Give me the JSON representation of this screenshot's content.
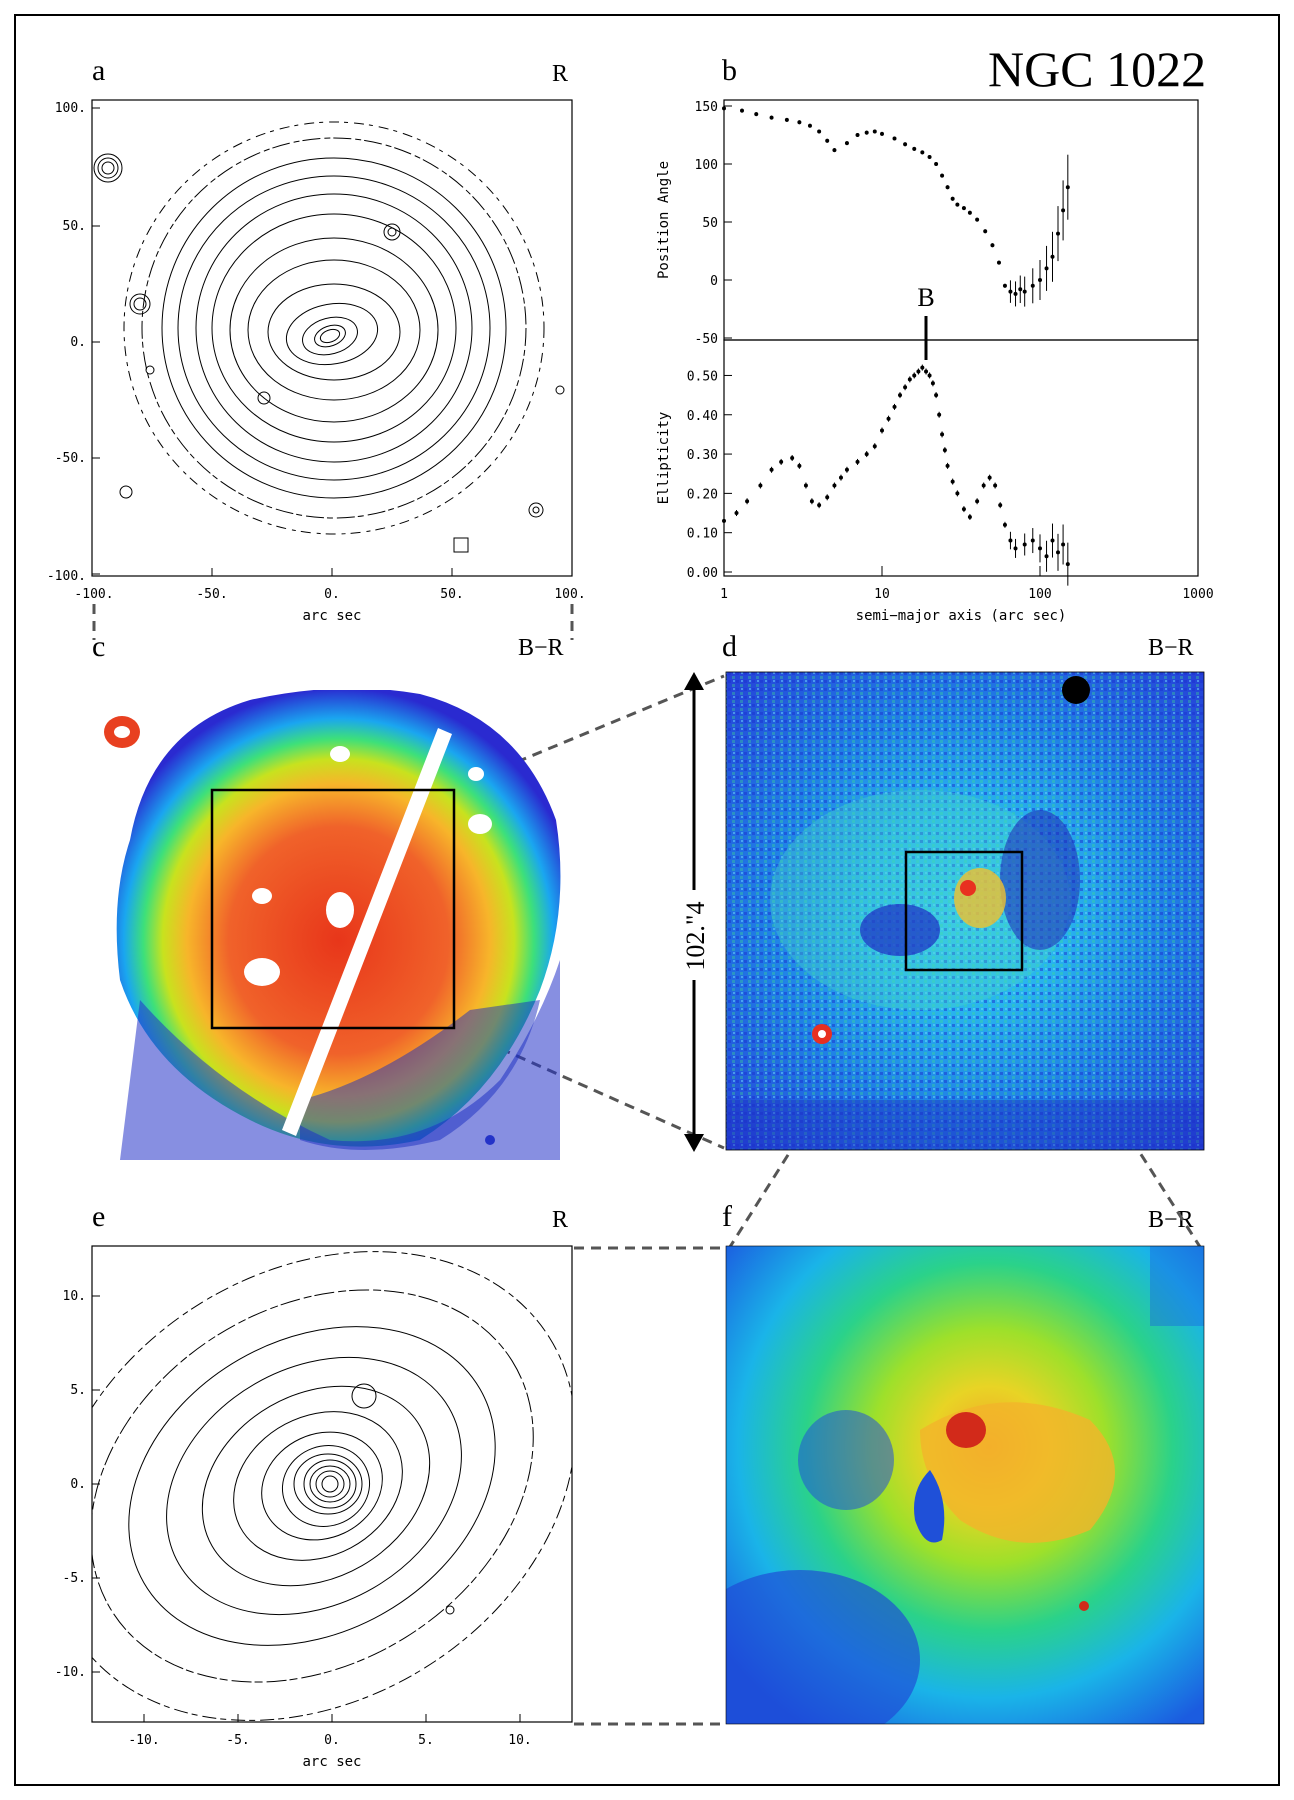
{
  "figure": {
    "title": "NGC 1022",
    "scale_label": "102.\"4"
  },
  "panels": {
    "a": {
      "letter": "a",
      "band": "R",
      "x_ticks": [
        "-100.",
        "-50.",
        "0.",
        "50.",
        "100."
      ],
      "y_ticks": [
        "100.",
        "50.",
        "0.",
        "-50.",
        "-100."
      ],
      "xlabel": "arc sec"
    },
    "b": {
      "letter": "b"
    },
    "c": {
      "letter": "c",
      "band": "B−R"
    },
    "d": {
      "letter": "d",
      "band": "B−R"
    },
    "e": {
      "letter": "e",
      "band": "R",
      "x_ticks": [
        "-10.",
        "-5.",
        "0.",
        "5.",
        "10."
      ],
      "y_ticks": [
        "10.",
        "5.",
        "0.",
        "-5.",
        "-10."
      ],
      "xlabel": "arc sec"
    },
    "f": {
      "letter": "f",
      "band": "B−R"
    }
  },
  "chart_data": [
    {
      "type": "scatter",
      "panel": "b-top",
      "title": "",
      "ylabel": "Position Angle",
      "xlabel": "",
      "xscale": "log",
      "xlim": [
        1,
        1000
      ],
      "ylim": [
        -50,
        150
      ],
      "y_ticks": [
        "150",
        "100",
        "50",
        "0",
        "-50"
      ],
      "x": [
        1,
        1.3,
        1.6,
        2,
        2.5,
        3,
        3.5,
        4,
        4.5,
        5,
        6,
        7,
        8,
        9,
        10,
        12,
        14,
        16,
        18,
        20,
        22,
        24,
        26,
        28,
        30,
        33,
        36,
        40,
        45,
        50,
        55,
        60,
        65,
        70,
        75,
        80,
        90,
        100,
        110,
        120,
        130,
        140,
        150
      ],
      "y": [
        148,
        146,
        143,
        140,
        138,
        136,
        133,
        128,
        120,
        112,
        118,
        125,
        127,
        128,
        126,
        122,
        117,
        113,
        110,
        106,
        100,
        90,
        80,
        70,
        65,
        62,
        58,
        52,
        42,
        30,
        15,
        -5,
        -10,
        -12,
        -8,
        -10,
        -5,
        0,
        10,
        20,
        40,
        60,
        80
      ],
      "marker": "B",
      "marker_x": 18
    },
    {
      "type": "scatter",
      "panel": "b-bottom",
      "title": "",
      "ylabel": "Ellipticity",
      "xlabel": "semi−major axis (arc sec)",
      "xscale": "log",
      "xlim": [
        1,
        1000
      ],
      "ylim": [
        0.0,
        0.58
      ],
      "y_ticks": [
        "0.50",
        "0.40",
        "0.30",
        "0.20",
        "0.10",
        "0.00"
      ],
      "x_ticks": [
        "1",
        "10",
        "100",
        "1000"
      ],
      "x": [
        1,
        1.2,
        1.4,
        1.7,
        2,
        2.3,
        2.7,
        3,
        3.3,
        3.6,
        4,
        4.5,
        5,
        5.5,
        6,
        7,
        8,
        9,
        10,
        11,
        12,
        13,
        14,
        15,
        16,
        17,
        18,
        19,
        20,
        21,
        22,
        23,
        24,
        25,
        26,
        28,
        30,
        33,
        36,
        40,
        44,
        48,
        52,
        56,
        60,
        65,
        70,
        80,
        90,
        100,
        110,
        120,
        130,
        140,
        150
      ],
      "y": [
        0.13,
        0.15,
        0.18,
        0.22,
        0.26,
        0.28,
        0.29,
        0.27,
        0.22,
        0.18,
        0.17,
        0.19,
        0.22,
        0.24,
        0.26,
        0.28,
        0.3,
        0.32,
        0.36,
        0.39,
        0.42,
        0.45,
        0.47,
        0.49,
        0.5,
        0.51,
        0.52,
        0.51,
        0.5,
        0.48,
        0.45,
        0.4,
        0.35,
        0.31,
        0.27,
        0.23,
        0.2,
        0.16,
        0.14,
        0.18,
        0.22,
        0.24,
        0.22,
        0.17,
        0.12,
        0.08,
        0.06,
        0.07,
        0.08,
        0.06,
        0.04,
        0.08,
        0.05,
        0.07,
        0.02
      ]
    }
  ]
}
